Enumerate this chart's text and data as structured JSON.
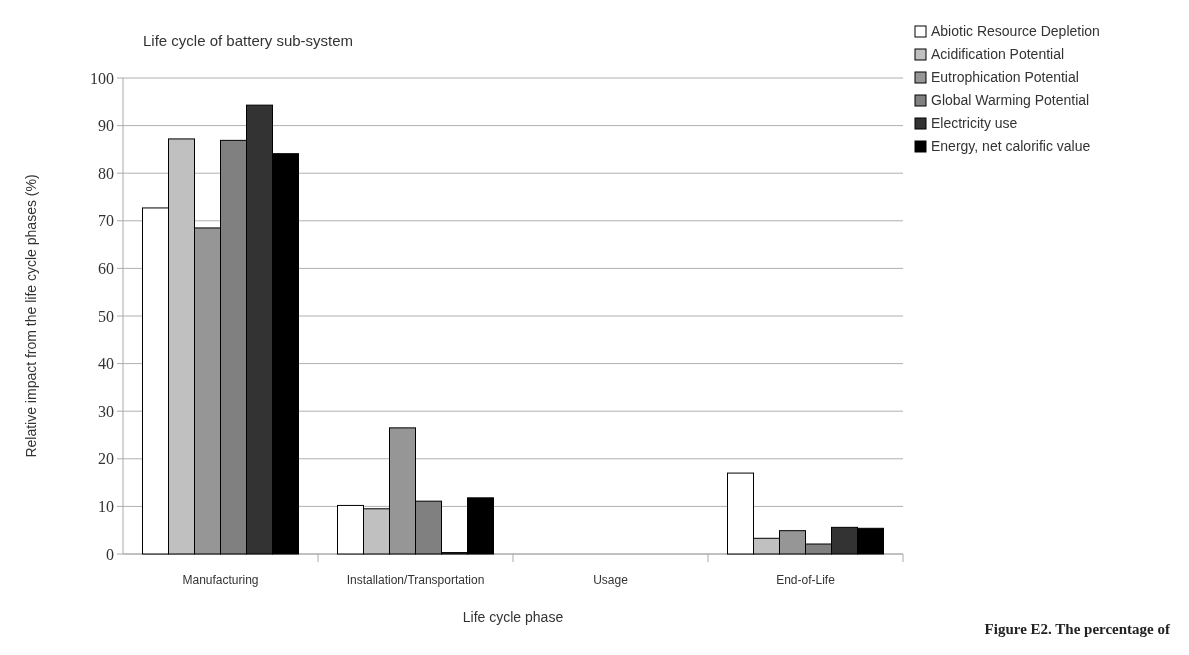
{
  "chart_data": {
    "type": "bar",
    "title": "Life cycle of battery sub-system",
    "xlabel": "Life cycle phase",
    "ylabel": "Relative impact from the life cycle phases (%)",
    "categories": [
      "Manufacturing",
      "Installation/Transportation",
      "Usage",
      "End-of-Life"
    ],
    "series": [
      {
        "name": "Abiotic Resource Depletion",
        "color": "#ffffff",
        "values": [
          72.7,
          10.2,
          0,
          17
        ]
      },
      {
        "name": "Acidification Potential",
        "color": "#c0c0c0",
        "values": [
          87.2,
          9.5,
          0,
          3.3
        ]
      },
      {
        "name": "Eutrophication Potential",
        "color": "#969696",
        "values": [
          68.5,
          26.5,
          0,
          4.9
        ]
      },
      {
        "name": "Global Warming Potential",
        "color": "#808080",
        "values": [
          86.9,
          11.1,
          0,
          2.1
        ]
      },
      {
        "name": "Electricity use",
        "color": "#333333",
        "values": [
          94.3,
          0.3,
          0,
          5.6
        ]
      },
      {
        "name": "Energy, net calorific value",
        "color": "#000000",
        "values": [
          84.1,
          11.8,
          0,
          5.4
        ]
      }
    ],
    "ylim": [
      0,
      100
    ],
    "yticks": [
      0,
      10,
      20,
      30,
      40,
      50,
      60,
      70,
      80,
      90,
      100
    ],
    "grid": "y",
    "legend": "top right",
    "annotations": [
      "Figure E2. The percentage of"
    ]
  }
}
